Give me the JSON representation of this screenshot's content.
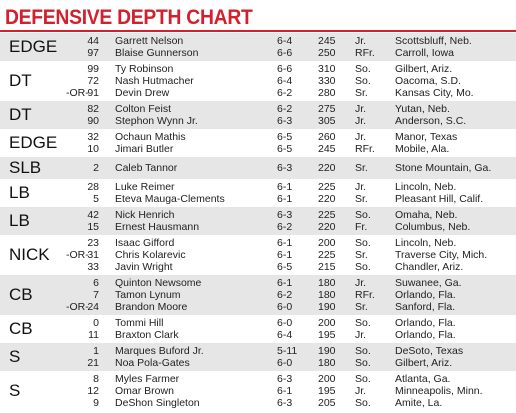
{
  "header": {
    "title": "DEFENSIVE DEPTH CHART"
  },
  "groups": [
    {
      "position": "EDGE",
      "players": [
        {
          "number": "44",
          "name": "Garrett Nelson",
          "height": "6-4",
          "weight": "245",
          "class": "Jr.",
          "hometown": "Scottsbluff, Neb."
        },
        {
          "number": "97",
          "name": "Blaise Gunnerson",
          "height": "6-6",
          "weight": "250",
          "class": "RFr.",
          "hometown": "Carroll, Iowa"
        }
      ]
    },
    {
      "position": "DT",
      "players": [
        {
          "number": "99",
          "name": "Ty Robinson",
          "height": "6-6",
          "weight": "310",
          "class": "So.",
          "hometown": "Gilbert, Ariz."
        },
        {
          "number": "72",
          "name": "Nash Hutmacher",
          "height": "6-4",
          "weight": "330",
          "class": "So.",
          "hometown": "Oacoma, S.D."
        },
        {
          "or": "-OR-",
          "number": "91",
          "name": "Devin Drew",
          "height": "6-2",
          "weight": "280",
          "class": "Sr.",
          "hometown": "Kansas City, Mo."
        }
      ]
    },
    {
      "position": "DT",
      "players": [
        {
          "number": "82",
          "name": "Colton Feist",
          "height": "6-2",
          "weight": "275",
          "class": "Jr.",
          "hometown": "Yutan, Neb."
        },
        {
          "number": "90",
          "name": "Stephon Wynn Jr.",
          "height": "6-3",
          "weight": "305",
          "class": "Jr.",
          "hometown": "Anderson, S.C."
        }
      ]
    },
    {
      "position": "EDGE",
      "players": [
        {
          "number": "32",
          "name": "Ochaun Mathis",
          "height": "6-5",
          "weight": "260",
          "class": "Jr.",
          "hometown": "Manor, Texas"
        },
        {
          "number": "10",
          "name": "Jimari Butler",
          "height": "6-5",
          "weight": "245",
          "class": "RFr.",
          "hometown": "Mobile, Ala."
        }
      ]
    },
    {
      "position": "SLB",
      "players": [
        {
          "number": "2",
          "name": "Caleb Tannor",
          "height": "6-3",
          "weight": "220",
          "class": "Sr.",
          "hometown": "Stone Mountain, Ga."
        }
      ]
    },
    {
      "position": "LB",
      "players": [
        {
          "number": "28",
          "name": "Luke Reimer",
          "height": "6-1",
          "weight": "225",
          "class": "Jr.",
          "hometown": "Lincoln, Neb."
        },
        {
          "number": "5",
          "name": "Eteva Mauga-Clements",
          "height": "6-1",
          "weight": "220",
          "class": "Sr.",
          "hometown": "Pleasant Hill, Calif."
        }
      ]
    },
    {
      "position": "LB",
      "players": [
        {
          "number": "42",
          "name": "Nick Henrich",
          "height": "6-3",
          "weight": "225",
          "class": "So.",
          "hometown": "Omaha, Neb."
        },
        {
          "number": "15",
          "name": "Ernest Hausmann",
          "height": "6-2",
          "weight": "220",
          "class": "Fr.",
          "hometown": "Columbus, Neb."
        }
      ]
    },
    {
      "position": "NICK",
      "players": [
        {
          "number": "23",
          "name": "Isaac Gifford",
          "height": "6-1",
          "weight": "200",
          "class": "So.",
          "hometown": "Lincoln, Neb."
        },
        {
          "or": "-OR-",
          "number": "31",
          "name": "Chris Kolarevic",
          "height": "6-1",
          "weight": "225",
          "class": "Sr.",
          "hometown": "Traverse City, Mich."
        },
        {
          "number": "33",
          "name": "Javin Wright",
          "height": "6-5",
          "weight": "215",
          "class": "So.",
          "hometown": "Chandler, Ariz."
        }
      ]
    },
    {
      "position": "CB",
      "players": [
        {
          "number": "6",
          "name": "Quinton Newsome",
          "height": "6-1",
          "weight": "180",
          "class": "Jr.",
          "hometown": "Suwanee, Ga."
        },
        {
          "number": "7",
          "name": "Tamon Lynum",
          "height": "6-2",
          "weight": "180",
          "class": "RFr.",
          "hometown": "Orlando, Fla."
        },
        {
          "or": "-OR-",
          "number": "24",
          "name": "Brandon Moore",
          "height": "6-0",
          "weight": "190",
          "class": "Sr.",
          "hometown": "Sanford, Fla."
        }
      ]
    },
    {
      "position": "CB",
      "players": [
        {
          "number": "0",
          "name": "Tommi Hill",
          "height": "6-0",
          "weight": "200",
          "class": "So.",
          "hometown": "Orlando, Fla."
        },
        {
          "number": "11",
          "name": "Braxton Clark",
          "height": "6-4",
          "weight": "195",
          "class": "Jr.",
          "hometown": "Orlando, Fla."
        }
      ]
    },
    {
      "position": "S",
      "players": [
        {
          "number": "1",
          "name": "Marques Buford Jr.",
          "height": "5-11",
          "weight": "190",
          "class": "So.",
          "hometown": "DeSoto, Texas"
        },
        {
          "number": "21",
          "name": "Noa Pola-Gates",
          "height": "6-0",
          "weight": "180",
          "class": "So.",
          "hometown": "Gilbert, Ariz."
        }
      ]
    },
    {
      "position": "S",
      "players": [
        {
          "number": "8",
          "name": "Myles Farmer",
          "height": "6-3",
          "weight": "200",
          "class": "So.",
          "hometown": "Atlanta, Ga."
        },
        {
          "number": "12",
          "name": "Omar Brown",
          "height": "6-1",
          "weight": "195",
          "class": "Jr.",
          "hometown": "Minneapolis, Minn."
        },
        {
          "number": "9",
          "name": "DeShon Singleton",
          "height": "6-3",
          "weight": "205",
          "class": "So.",
          "hometown": "Amite, La."
        }
      ]
    }
  ]
}
